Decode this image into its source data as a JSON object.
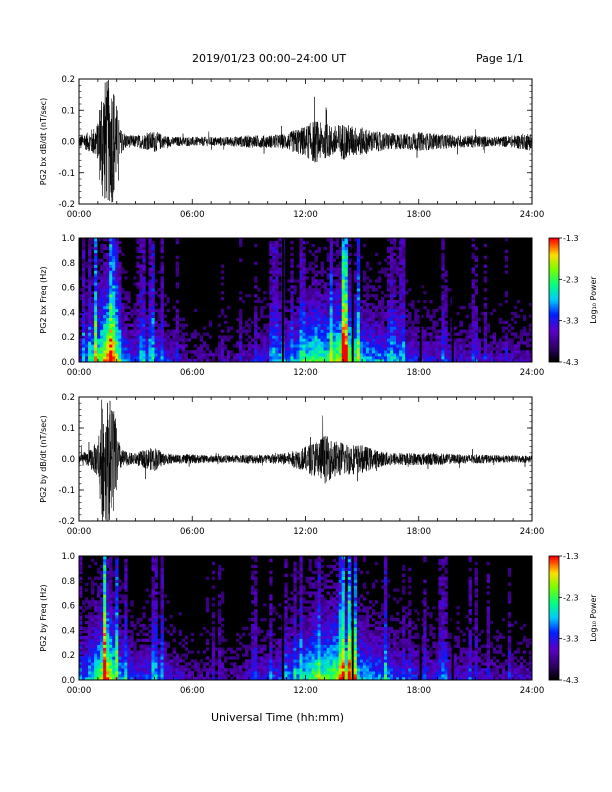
{
  "page": {
    "title": "2019/01/23  00:00–24:00 UT",
    "page_number": "Page 1/1"
  },
  "chart_data": [
    {
      "type": "line",
      "ylabel": "PG2 bx dB/dt (nT/sec)",
      "x_ticks": [
        "00:00",
        "06:00",
        "12:00",
        "18:00",
        "24:00"
      ],
      "y_ticks": [
        "-0.2",
        "-0.1",
        "0.0",
        "0.1",
        "0.2"
      ],
      "xlim": [
        0,
        24
      ],
      "ylim": [
        -0.2,
        0.2
      ],
      "envelope_hours": [
        0.0,
        0.5,
        1.0,
        1.2,
        1.4,
        1.6,
        1.8,
        2.0,
        2.2,
        2.6,
        3.0,
        3.5,
        4.0,
        4.5,
        5.0,
        6.0,
        7.0,
        8.0,
        9.0,
        10.0,
        11.0,
        11.5,
        12.0,
        12.5,
        13.0,
        13.5,
        14.0,
        14.5,
        15.0,
        15.5,
        16.0,
        17.0,
        18.0,
        19.0,
        20.0,
        21.0,
        22.0,
        23.0,
        24.0
      ],
      "envelope_amplitude": [
        0.02,
        0.03,
        0.06,
        0.2,
        0.2,
        0.2,
        0.2,
        0.12,
        0.04,
        0.02,
        0.02,
        0.025,
        0.035,
        0.02,
        0.015,
        0.015,
        0.015,
        0.015,
        0.02,
        0.02,
        0.025,
        0.04,
        0.05,
        0.07,
        0.055,
        0.05,
        0.06,
        0.05,
        0.045,
        0.035,
        0.03,
        0.025,
        0.03,
        0.025,
        0.02,
        0.02,
        0.015,
        0.02,
        0.03
      ]
    },
    {
      "type": "heatmap",
      "ylabel": "PG2 bx Freq (Hz)",
      "x_ticks": [
        "00:00",
        "06:00",
        "12:00",
        "18:00",
        "24:00"
      ],
      "y_ticks": [
        "0.0",
        "0.2",
        "0.4",
        "0.6",
        "0.8",
        "1.0"
      ],
      "xlim": [
        0,
        24
      ],
      "ylim": [
        0,
        1.0
      ],
      "colorbar_label": "Log₁₀ Power",
      "colorbar_ticks": [
        "-1.3",
        "-2.3",
        "-3.3",
        "-4.3"
      ],
      "clim": [
        -4.3,
        -1.3
      ],
      "activity_hours": [
        0,
        1,
        1.5,
        2,
        3,
        4,
        5,
        6,
        8,
        10,
        11,
        12,
        12.5,
        13,
        14,
        14.5,
        15,
        16,
        17,
        18,
        20,
        22,
        24
      ],
      "activity_level": [
        0.35,
        0.7,
        1.0,
        0.6,
        0.35,
        0.45,
        0.3,
        0.2,
        0.2,
        0.35,
        0.45,
        0.6,
        0.75,
        0.65,
        0.85,
        0.75,
        0.55,
        0.5,
        0.4,
        0.35,
        0.3,
        0.25,
        0.25
      ],
      "gap_hours": [
        10.8,
        14.5,
        18.1,
        19.8
      ]
    },
    {
      "type": "line",
      "ylabel": "PG2 by dB/dt (nT/sec)",
      "x_ticks": [
        "00:00",
        "06:00",
        "12:00",
        "18:00",
        "24:00"
      ],
      "y_ticks": [
        "-0.2",
        "-0.1",
        "0.0",
        "0.1",
        "0.2"
      ],
      "xlim": [
        0,
        24
      ],
      "ylim": [
        -0.2,
        0.2
      ],
      "envelope_hours": [
        0.0,
        0.5,
        1.0,
        1.2,
        1.4,
        1.6,
        1.8,
        2.0,
        2.2,
        2.6,
        3.0,
        3.5,
        4.0,
        4.5,
        5.0,
        6.0,
        7.0,
        8.0,
        9.0,
        10.0,
        11.0,
        11.5,
        12.0,
        12.5,
        13.0,
        13.5,
        14.0,
        14.5,
        15.0,
        15.5,
        16.0,
        17.0,
        18.0,
        19.0,
        20.0,
        21.0,
        22.0,
        23.0,
        24.0
      ],
      "envelope_amplitude": [
        0.02,
        0.025,
        0.06,
        0.2,
        0.2,
        0.2,
        0.2,
        0.1,
        0.035,
        0.02,
        0.02,
        0.03,
        0.04,
        0.02,
        0.015,
        0.015,
        0.012,
        0.012,
        0.015,
        0.015,
        0.02,
        0.03,
        0.04,
        0.06,
        0.08,
        0.06,
        0.055,
        0.05,
        0.045,
        0.035,
        0.025,
        0.02,
        0.02,
        0.02,
        0.015,
        0.015,
        0.012,
        0.012,
        0.012
      ]
    },
    {
      "type": "heatmap",
      "ylabel": "PG2 by Freq (Hz)",
      "xlabel": "Universal Time (hh:mm)",
      "x_ticks": [
        "00:00",
        "06:00",
        "12:00",
        "18:00",
        "24:00"
      ],
      "y_ticks": [
        "0.0",
        "0.2",
        "0.4",
        "0.6",
        "0.8",
        "1.0"
      ],
      "xlim": [
        0,
        24
      ],
      "ylim": [
        0,
        1.0
      ],
      "colorbar_label": "Log₁₀ Power",
      "colorbar_ticks": [
        "-1.3",
        "-2.3",
        "-3.3",
        "-4.3"
      ],
      "clim": [
        -4.3,
        -1.3
      ],
      "activity_hours": [
        0,
        1,
        1.5,
        2,
        3,
        4,
        5,
        6,
        8,
        10,
        11,
        12,
        12.5,
        13,
        14,
        14.5,
        15,
        16,
        17,
        18,
        20,
        22,
        24
      ],
      "activity_level": [
        0.35,
        0.7,
        1.0,
        0.6,
        0.35,
        0.45,
        0.3,
        0.2,
        0.2,
        0.35,
        0.45,
        0.6,
        0.75,
        0.7,
        0.85,
        0.75,
        0.55,
        0.5,
        0.4,
        0.35,
        0.3,
        0.25,
        0.25
      ],
      "gap_hours": [
        10.8,
        14.5,
        18.1,
        19.8
      ]
    }
  ]
}
